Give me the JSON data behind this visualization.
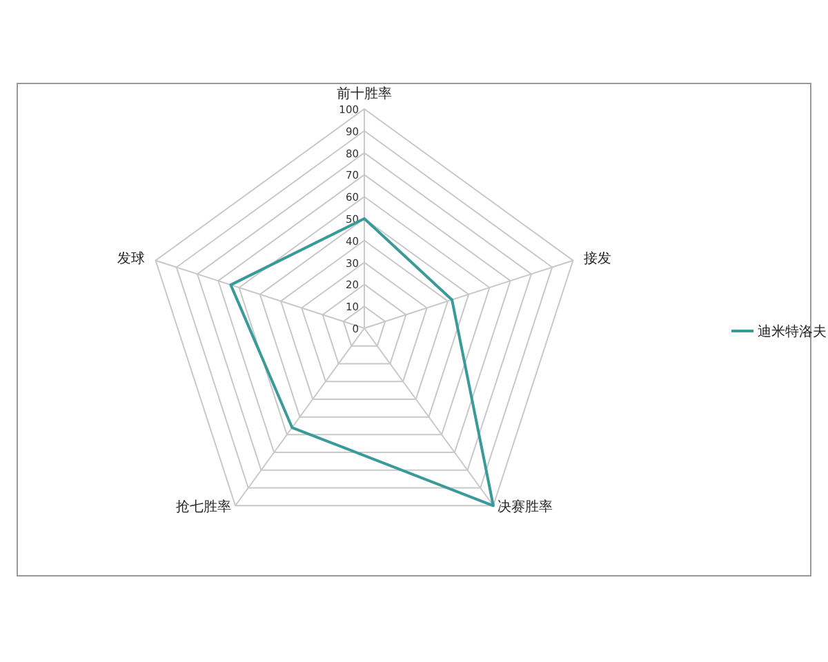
{
  "chart_data": {
    "type": "radar",
    "categories": [
      "前十胜率",
      "接发",
      "决赛胜率",
      "抢七胜率",
      "发球"
    ],
    "series": [
      {
        "name": "迪米特洛夫",
        "color": "#3a9a9a",
        "values": [
          50,
          42,
          100,
          56,
          64
        ]
      }
    ],
    "ylim": [
      0,
      100
    ],
    "yticks": [
      0,
      10,
      20,
      30,
      40,
      50,
      60,
      70,
      80,
      90,
      100
    ],
    "grid": true,
    "legend": "right"
  }
}
